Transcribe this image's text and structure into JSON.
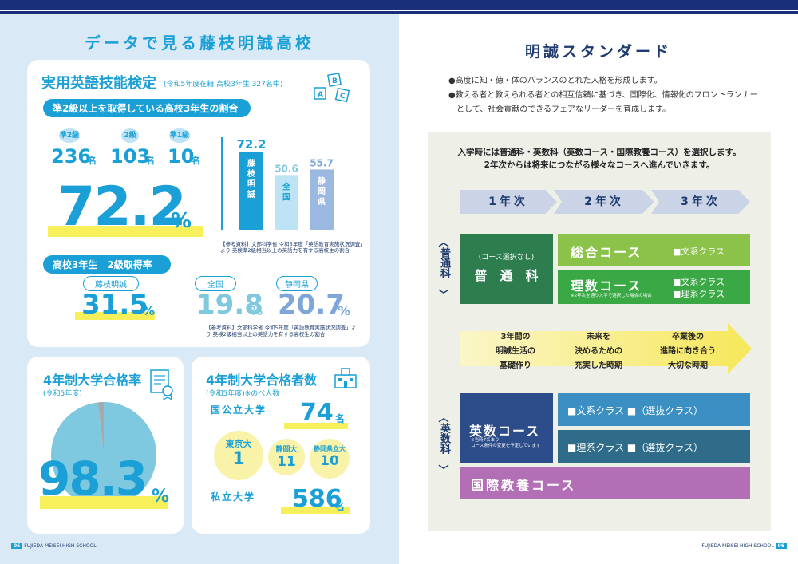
{
  "left": {
    "title": "データで見る藤枝明誠高校",
    "english": {
      "title": "実用英語技能検定",
      "subtitle": "(令和5年度在籍 高校3年生 327名中)",
      "bar_label": "準2級以上を取得している高校3年生の割合",
      "grades": [
        {
          "badge": "準2級",
          "count": "236",
          "unit": "名"
        },
        {
          "badge": "2級",
          "count": "103",
          "unit": "名"
        },
        {
          "badge": "準1級",
          "count": "10",
          "unit": "名"
        }
      ],
      "big_percent": "72.2",
      "percent_sign": "%",
      "chart_note": "【参考資料】文部科学省 令和5年度「英語教育実施状況調査」より 英検準2級相当以上の英語力を有する高校生の割合",
      "grade2_label": "高校3年生　2級取得率",
      "grade2": [
        {
          "label": "藤枝明誠",
          "value": "31.5"
        },
        {
          "label": "全国",
          "value": "19.8"
        },
        {
          "label": "静岡県",
          "value": "20.7"
        }
      ],
      "grade2_note": "【参考資料】文部科学省 令和5年度「英語教育実施状況調査」より 英検2級相当以上の英語力を有する高校生の割合"
    },
    "univ_rate": {
      "title": "4年制大学合格率",
      "sub": "(令和5年度)",
      "value": "98.3",
      "percent_sign": "%"
    },
    "univ_count": {
      "title": "4年制大学合格者数",
      "sub": "(令和5年度)※のべ人数",
      "public_label": "国公立大学",
      "public_value": "74",
      "unit": "名",
      "bubbles": [
        {
          "name": "東京大",
          "value": "1"
        },
        {
          "name": "静岡大",
          "value": "11"
        },
        {
          "name": "静岡県立大",
          "value": "10"
        }
      ],
      "private_label": "私立大学",
      "private_value": "586"
    },
    "footer": "FUJIEDA MEISEI HIGH SCHOOL",
    "page": "05"
  },
  "chart_data": {
    "type": "bar",
    "categories": [
      "藤枝明誠",
      "全国",
      "静岡県"
    ],
    "values": [
      72.2,
      50.6,
      55.7
    ],
    "value_labels": [
      "72.2",
      "50.6",
      "55.7"
    ],
    "colors": [
      "#1aa0d6",
      "#bde3f5",
      "#9ab8e0"
    ]
  },
  "pie": {
    "value": 98.3,
    "colors": [
      "#7ec8e0",
      "#a7a9ac"
    ]
  },
  "right": {
    "title": "明誠スタンダード",
    "bullets": [
      "●高度に知・徳・体のバランスのとれた人格を形成します。",
      "●教える者と教えられる者との相互信頼に基づき、国際化、情報化のフロントランナー",
      "　として、社会貢献のできるフェアなリーダーを育成します。"
    ],
    "intro1": "入学時には普通科・英数科（英数コース・国際教養コース）を選択します。",
    "intro2": "2年次からは将来につながる様々なコースへ進んでいきます。",
    "years": [
      "1年次",
      "2年次",
      "3年次"
    ],
    "futsu_label": "普通科",
    "futsu_sub": "(コース選択なし)",
    "futsu_name": "普　通　科",
    "sogo": "総合コース",
    "sogo_class": "■文系クラス",
    "risu": "理数コース",
    "risu_note": "※2年次を通り入学で選択した場合の場合",
    "risu_class1": "■文系クラス",
    "risu_class2": "■理系クラス",
    "phases": [
      [
        "3年間の",
        "明誠生活の",
        "基礎作り"
      ],
      [
        "未来を",
        "決めるための",
        "充実した時期"
      ],
      [
        "卒業後の",
        "進路に向き合う",
        "大切な時期"
      ]
    ],
    "eisu_label": "英数科",
    "eisu_name": "英数コース",
    "eisu_note1": "※当時7名まり",
    "eisu_note2": "コース条件の変更を予定しています",
    "eisu_class1": "■文系クラス ■（選抜クラス）",
    "eisu_class2": "■理系クラス ■（選抜クラス）",
    "kokusai": "国際教養コース",
    "footer": "FUJIEDA MEISEI HIGH SCHOOL",
    "page": "06"
  }
}
